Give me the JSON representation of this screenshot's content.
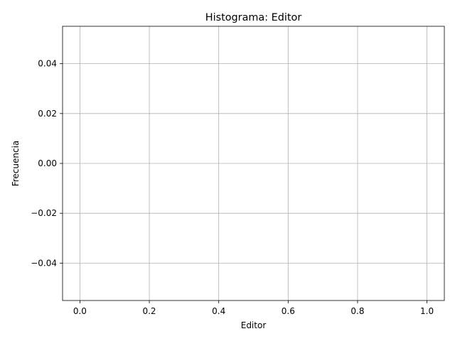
{
  "chart_data": {
    "type": "bar",
    "title": "Histograma: Editor",
    "xlabel": "Editor",
    "ylabel": "Frecuencia",
    "xlim": [
      -0.05,
      1.05
    ],
    "ylim": [
      -0.055,
      0.055
    ],
    "x_ticks": [
      0.0,
      0.2,
      0.4,
      0.6,
      0.8,
      1.0
    ],
    "x_tick_labels": [
      "0.0",
      "0.2",
      "0.4",
      "0.6",
      "0.8",
      "1.0"
    ],
    "y_ticks": [
      -0.04,
      -0.02,
      0.0,
      0.02,
      0.04
    ],
    "y_tick_labels": [
      "−0.04",
      "−0.02",
      "0.00",
      "0.02",
      "0.04"
    ],
    "grid": true,
    "series": [],
    "colors": {
      "grid": "#b0b0b0",
      "axes": "#000000",
      "background": "#ffffff"
    }
  }
}
